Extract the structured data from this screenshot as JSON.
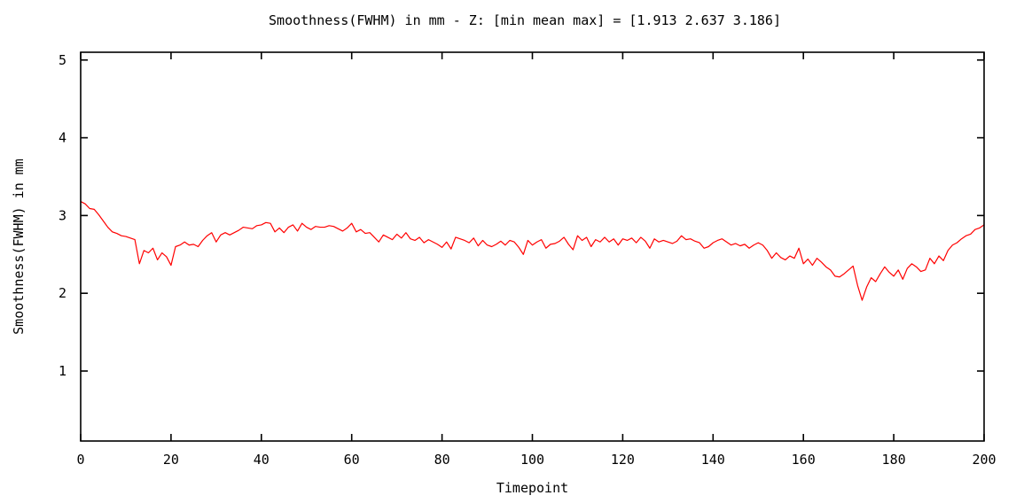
{
  "chart_data": {
    "type": "line",
    "title": "Smoothness(FWHM) in mm - Z: [min mean max] = [1.913 2.637 3.186]",
    "xlabel": "Timepoint",
    "ylabel": "Smoothness(FWHM) in mm",
    "xlim": [
      0,
      200
    ],
    "ylim": [
      0.1,
      5.1
    ],
    "x_ticks": [
      0,
      20,
      40,
      60,
      80,
      100,
      120,
      140,
      160,
      180,
      200
    ],
    "y_ticks": [
      1,
      2,
      3,
      4,
      5
    ],
    "grid": false,
    "legend": "none",
    "series": [
      {
        "color": "#ff0000",
        "x_start": 0,
        "x_step": 1,
        "values": [
          3.18,
          3.15,
          3.09,
          3.08,
          3.01,
          2.93,
          2.85,
          2.79,
          2.77,
          2.74,
          2.73,
          2.71,
          2.69,
          2.38,
          2.55,
          2.52,
          2.58,
          2.43,
          2.52,
          2.47,
          2.36,
          2.6,
          2.62,
          2.66,
          2.62,
          2.63,
          2.6,
          2.68,
          2.74,
          2.78,
          2.66,
          2.75,
          2.78,
          2.75,
          2.78,
          2.81,
          2.85,
          2.84,
          2.83,
          2.87,
          2.88,
          2.91,
          2.9,
          2.79,
          2.84,
          2.78,
          2.85,
          2.88,
          2.8,
          2.9,
          2.85,
          2.82,
          2.86,
          2.85,
          2.85,
          2.87,
          2.86,
          2.83,
          2.8,
          2.84,
          2.9,
          2.79,
          2.82,
          2.77,
          2.78,
          2.72,
          2.66,
          2.75,
          2.72,
          2.69,
          2.76,
          2.71,
          2.78,
          2.7,
          2.68,
          2.72,
          2.65,
          2.69,
          2.66,
          2.63,
          2.59,
          2.66,
          2.57,
          2.72,
          2.7,
          2.68,
          2.65,
          2.71,
          2.61,
          2.68,
          2.62,
          2.6,
          2.63,
          2.67,
          2.62,
          2.68,
          2.66,
          2.59,
          2.5,
          2.68,
          2.62,
          2.66,
          2.69,
          2.58,
          2.63,
          2.64,
          2.67,
          2.72,
          2.63,
          2.56,
          2.74,
          2.68,
          2.72,
          2.6,
          2.69,
          2.66,
          2.72,
          2.66,
          2.7,
          2.62,
          2.7,
          2.68,
          2.71,
          2.65,
          2.72,
          2.67,
          2.58,
          2.7,
          2.66,
          2.68,
          2.66,
          2.64,
          2.67,
          2.74,
          2.69,
          2.7,
          2.67,
          2.65,
          2.58,
          2.6,
          2.65,
          2.68,
          2.7,
          2.66,
          2.62,
          2.64,
          2.61,
          2.63,
          2.58,
          2.62,
          2.65,
          2.62,
          2.55,
          2.45,
          2.52,
          2.46,
          2.43,
          2.48,
          2.45,
          2.58,
          2.38,
          2.44,
          2.36,
          2.45,
          2.4,
          2.34,
          2.3,
          2.22,
          2.21,
          2.25,
          2.3,
          2.35,
          2.1,
          1.91,
          2.08,
          2.2,
          2.15,
          2.25,
          2.34,
          2.27,
          2.22,
          2.3,
          2.18,
          2.32,
          2.38,
          2.34,
          2.28,
          2.3,
          2.45,
          2.38,
          2.48,
          2.42,
          2.55,
          2.62,
          2.65,
          2.7,
          2.74,
          2.76,
          2.82,
          2.84,
          2.88
        ]
      }
    ]
  }
}
